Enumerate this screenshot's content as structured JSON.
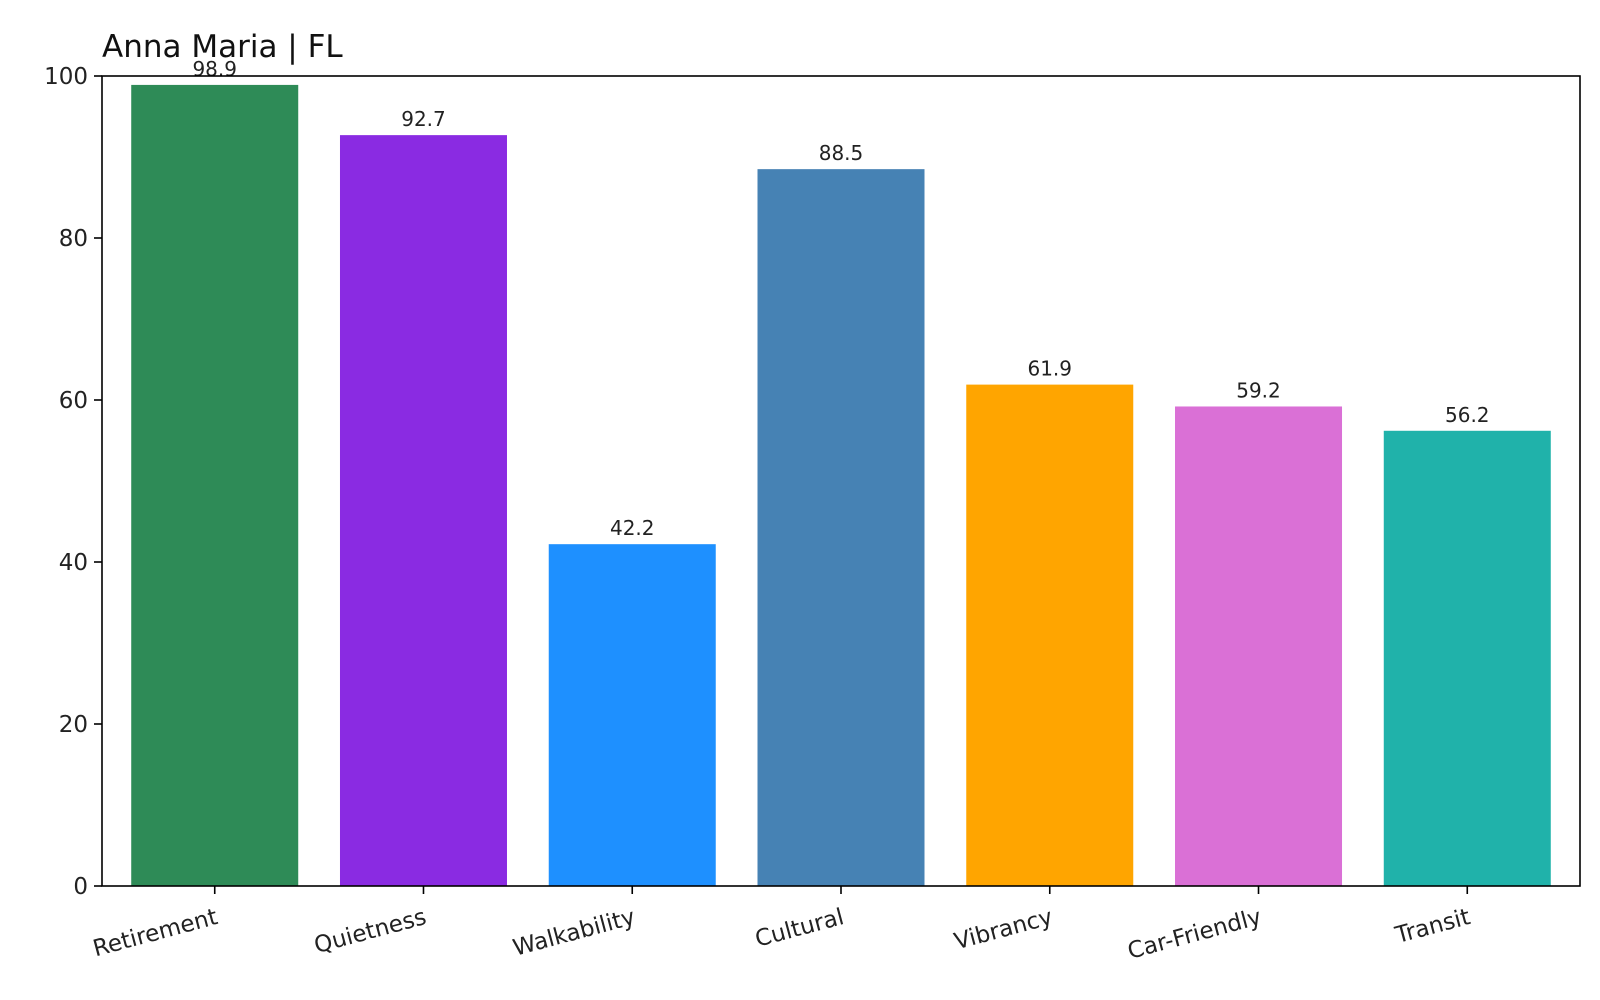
{
  "chart_data": {
    "type": "bar",
    "title": "Anna Maria | FL",
    "xlabel": "",
    "ylabel": "",
    "ylim": [
      0,
      100
    ],
    "yticks": [
      0,
      20,
      40,
      60,
      80,
      100
    ],
    "ytick_labels": [
      "0",
      "20",
      "40",
      "60",
      "80",
      "100"
    ],
    "grid": false,
    "legend": "none",
    "categories": [
      "Retirement",
      "Quietness",
      "Walkability",
      "Cultural",
      "Vibrancy",
      "Car-Friendly",
      "Transit"
    ],
    "values": [
      98.9,
      92.7,
      42.2,
      88.5,
      61.9,
      59.2,
      56.2
    ],
    "value_labels": [
      "98.9",
      "92.7",
      "42.2",
      "88.5",
      "61.9",
      "59.2",
      "56.2"
    ],
    "colors": [
      "#2e8b57",
      "#8a2be2",
      "#1e90ff",
      "#4682b4",
      "#ffa500",
      "#da70d6",
      "#20b2aa"
    ]
  }
}
